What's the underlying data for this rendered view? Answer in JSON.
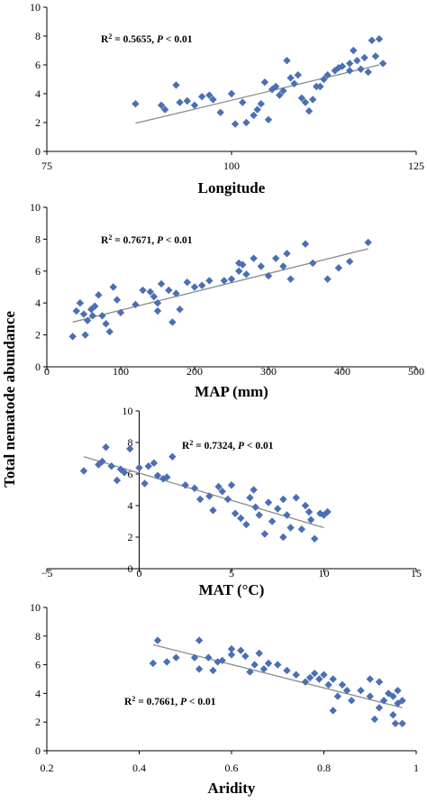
{
  "figure": {
    "shared_ylabel": "Total nematode abundance",
    "marker_color": "#4a6fb5",
    "trend_color": "#8c8c8c"
  },
  "chart_data": [
    {
      "type": "scatter",
      "xlabel": "Longitude",
      "xlim": [
        75,
        125
      ],
      "ylim": [
        0,
        10
      ],
      "xticks": [
        75,
        100,
        125
      ],
      "xtick_labels": [
        "75",
        "100",
        "125"
      ],
      "yticks": [
        0,
        2,
        4,
        6,
        8,
        10
      ],
      "annotation": {
        "r2_label": "R",
        "r2_sup": "2",
        "r2_value": " = 0.5655, ",
        "p_label": "P",
        "p_value": " < 0.01"
      },
      "trend": {
        "x": [
          87,
          120
        ],
        "y": [
          1.95,
          6.0
        ]
      },
      "points": [
        [
          87,
          3.3
        ],
        [
          90.5,
          3.2
        ],
        [
          91,
          2.9
        ],
        [
          92.5,
          4.6
        ],
        [
          93,
          3.4
        ],
        [
          94,
          3.5
        ],
        [
          95,
          3.2
        ],
        [
          96,
          3.8
        ],
        [
          97,
          3.9
        ],
        [
          97.5,
          3.6
        ],
        [
          98.5,
          2.7
        ],
        [
          100,
          4
        ],
        [
          100.5,
          1.9
        ],
        [
          101.5,
          3.4
        ],
        [
          102,
          2.0
        ],
        [
          103,
          2.5
        ],
        [
          103.5,
          2.9
        ],
        [
          104,
          3.3
        ],
        [
          104.5,
          4.8
        ],
        [
          105,
          2.2
        ],
        [
          105.5,
          4.3
        ],
        [
          106,
          4.5
        ],
        [
          106.5,
          3.9
        ],
        [
          107,
          4.2
        ],
        [
          107.5,
          6.3
        ],
        [
          108,
          5.1
        ],
        [
          108.5,
          4.7
        ],
        [
          109,
          5.3
        ],
        [
          109.5,
          3.7
        ],
        [
          110,
          3.4
        ],
        [
          110.5,
          2.8
        ],
        [
          111,
          3.6
        ],
        [
          111.5,
          4.5
        ],
        [
          112,
          4.5
        ],
        [
          112.5,
          5
        ],
        [
          113,
          5.3
        ],
        [
          114,
          5.6
        ],
        [
          115,
          5.9
        ],
        [
          116,
          6.1
        ],
        [
          116.5,
          7
        ],
        [
          117,
          6.3
        ],
        [
          117.5,
          5.7
        ],
        [
          118,
          6.5
        ],
        [
          118.5,
          5.5
        ],
        [
          119,
          7.7
        ],
        [
          119.5,
          6.6
        ],
        [
          120,
          7.8
        ],
        [
          120.5,
          6.1
        ],
        [
          116,
          5.6
        ],
        [
          114.5,
          5.8
        ]
      ]
    },
    {
      "type": "scatter",
      "xlabel": "MAP (mm)",
      "xlim": [
        0,
        500
      ],
      "ylim": [
        0,
        10
      ],
      "xticks": [
        0,
        100,
        200,
        300,
        400,
        500
      ],
      "xtick_labels": [
        "0",
        "100",
        "200",
        "300",
        "400",
        "500"
      ],
      "yticks": [
        0,
        2,
        4,
        6,
        8,
        10
      ],
      "annotation": {
        "r2_label": "R",
        "r2_sup": "2",
        "r2_value": " = 0.7671, ",
        "p_label": "P",
        "p_value": " < 0.01"
      },
      "trend": {
        "x": [
          35,
          435
        ],
        "y": [
          2.8,
          7.4
        ]
      },
      "points": [
        [
          35,
          1.9
        ],
        [
          40,
          3.5
        ],
        [
          45,
          4.0
        ],
        [
          50,
          3.3
        ],
        [
          52,
          2.0
        ],
        [
          55,
          2.9
        ],
        [
          60,
          3.6
        ],
        [
          62,
          3.2
        ],
        [
          65,
          3.8
        ],
        [
          70,
          4.5
        ],
        [
          75,
          3.2
        ],
        [
          80,
          2.7
        ],
        [
          85,
          2.2
        ],
        [
          90,
          5.0
        ],
        [
          95,
          4.2
        ],
        [
          100,
          3.4
        ],
        [
          120,
          3.9
        ],
        [
          130,
          4.8
        ],
        [
          145,
          4.4
        ],
        [
          150,
          3.5
        ],
        [
          155,
          5.2
        ],
        [
          165,
          4.8
        ],
        [
          170,
          2.8
        ],
        [
          175,
          4.6
        ],
        [
          180,
          3.6
        ],
        [
          190,
          5.3
        ],
        [
          200,
          5.0
        ],
        [
          210,
          5.1
        ],
        [
          220,
          5.4
        ],
        [
          240,
          5.4
        ],
        [
          250,
          5.5
        ],
        [
          260,
          6.5
        ],
        [
          265,
          6.4
        ],
        [
          270,
          5.8
        ],
        [
          280,
          6.8
        ],
        [
          290,
          6.3
        ],
        [
          300,
          5.7
        ],
        [
          310,
          6.8
        ],
        [
          320,
          6.3
        ],
        [
          325,
          7.1
        ],
        [
          330,
          5.5
        ],
        [
          350,
          7.7
        ],
        [
          360,
          6.5
        ],
        [
          380,
          5.5
        ],
        [
          395,
          6.2
        ],
        [
          410,
          6.6
        ],
        [
          435,
          7.8
        ],
        [
          150,
          4.0
        ],
        [
          140,
          4.7
        ],
        [
          260,
          6.0
        ]
      ]
    },
    {
      "type": "scatter",
      "xlabel": "MAT (°C)",
      "xlim": [
        -5,
        15
      ],
      "ylim": [
        0,
        10
      ],
      "xticks": [
        -5,
        0,
        5,
        10,
        15
      ],
      "xtick_labels": [
        "−5",
        "0",
        "5",
        "10",
        "15"
      ],
      "yticks": [
        0,
        2,
        4,
        6,
        8,
        10
      ],
      "annotation": {
        "r2_label": "R",
        "r2_sup": "2",
        "r2_value": " = 0.7324, ",
        "p_label": "P",
        "p_value": " < 0.01"
      },
      "trend": {
        "x": [
          -3,
          10
        ],
        "y": [
          7.1,
          2.6
        ]
      },
      "points": [
        [
          -3,
          6.2
        ],
        [
          -2.2,
          6.6
        ],
        [
          -2,
          6.8
        ],
        [
          -1.8,
          7.7
        ],
        [
          -1.5,
          6.5
        ],
        [
          -1.2,
          5.6
        ],
        [
          -1,
          6.3
        ],
        [
          -0.8,
          6.1
        ],
        [
          -0.5,
          7.6
        ],
        [
          0,
          6.4
        ],
        [
          0.3,
          5.4
        ],
        [
          0.5,
          6.5
        ],
        [
          0.8,
          6.7
        ],
        [
          1,
          5.9
        ],
        [
          1.3,
          5.7
        ],
        [
          1.5,
          5.8
        ],
        [
          1.8,
          7.1
        ],
        [
          2.5,
          5.3
        ],
        [
          3,
          5.1
        ],
        [
          3.3,
          4.4
        ],
        [
          3.8,
          4.6
        ],
        [
          4,
          3.7
        ],
        [
          4.3,
          5.2
        ],
        [
          4.5,
          4.9
        ],
        [
          4.8,
          4.4
        ],
        [
          5,
          5.3
        ],
        [
          5.2,
          3.5
        ],
        [
          5.5,
          3.2
        ],
        [
          5.8,
          2.8
        ],
        [
          6,
          4.5
        ],
        [
          6.3,
          3.9
        ],
        [
          6.5,
          3.4
        ],
        [
          6.8,
          2.2
        ],
        [
          7,
          4.2
        ],
        [
          7.2,
          3.0
        ],
        [
          7.5,
          3.8
        ],
        [
          7.8,
          2.0
        ],
        [
          8,
          3.4
        ],
        [
          8.2,
          2.6
        ],
        [
          8.5,
          4.5
        ],
        [
          8.8,
          2.5
        ],
        [
          9,
          4.0
        ],
        [
          9.2,
          3.6
        ],
        [
          9.5,
          1.9
        ],
        [
          9.8,
          3.5
        ],
        [
          10,
          3.4
        ],
        [
          6.2,
          5.0
        ],
        [
          7.8,
          4.4
        ],
        [
          9.3,
          3.1
        ],
        [
          10.2,
          3.6
        ]
      ]
    },
    {
      "type": "scatter",
      "xlabel": "Aridity",
      "xlim": [
        0.2,
        1
      ],
      "ylim": [
        0,
        10
      ],
      "xticks": [
        0.2,
        0.4,
        0.6,
        0.8,
        1
      ],
      "xtick_labels": [
        "0.2",
        "0.4",
        "0.6",
        "0.8",
        "1"
      ],
      "yticks": [
        0,
        2,
        4,
        6,
        8,
        10
      ],
      "annotation": {
        "r2_label": "R",
        "r2_sup": "2",
        "r2_value": " = 0.7661, ",
        "p_label": "P",
        "p_value": " < 0.01"
      },
      "trend": {
        "x": [
          0.43,
          0.97
        ],
        "y": [
          7.4,
          3.0
        ]
      },
      "points": [
        [
          0.43,
          6.1
        ],
        [
          0.44,
          7.7
        ],
        [
          0.46,
          6.2
        ],
        [
          0.48,
          6.5
        ],
        [
          0.52,
          6.5
        ],
        [
          0.53,
          7.7
        ],
        [
          0.53,
          5.7
        ],
        [
          0.55,
          6.5
        ],
        [
          0.56,
          5.6
        ],
        [
          0.57,
          6.2
        ],
        [
          0.58,
          6.3
        ],
        [
          0.6,
          6.7
        ],
        [
          0.6,
          7.1
        ],
        [
          0.62,
          7.0
        ],
        [
          0.63,
          6.6
        ],
        [
          0.64,
          5.5
        ],
        [
          0.65,
          6.0
        ],
        [
          0.66,
          6.8
        ],
        [
          0.67,
          5.7
        ],
        [
          0.68,
          6.1
        ],
        [
          0.7,
          6.0
        ],
        [
          0.72,
          5.6
        ],
        [
          0.74,
          5.3
        ],
        [
          0.76,
          4.8
        ],
        [
          0.77,
          5.1
        ],
        [
          0.78,
          5.4
        ],
        [
          0.79,
          5.0
        ],
        [
          0.8,
          5.3
        ],
        [
          0.81,
          4.6
        ],
        [
          0.82,
          2.8
        ],
        [
          0.82,
          5.0
        ],
        [
          0.83,
          3.8
        ],
        [
          0.84,
          4.6
        ],
        [
          0.85,
          4.2
        ],
        [
          0.86,
          3.5
        ],
        [
          0.88,
          4.2
        ],
        [
          0.9,
          3.8
        ],
        [
          0.9,
          5.0
        ],
        [
          0.91,
          2.2
        ],
        [
          0.92,
          3.0
        ],
        [
          0.92,
          4.8
        ],
        [
          0.93,
          3.5
        ],
        [
          0.94,
          4.0
        ],
        [
          0.95,
          3.8
        ],
        [
          0.95,
          2.5
        ],
        [
          0.96,
          3.3
        ],
        [
          0.96,
          4.2
        ],
        [
          0.97,
          1.9
        ],
        [
          0.97,
          3.5
        ],
        [
          0.955,
          1.9
        ]
      ]
    }
  ]
}
